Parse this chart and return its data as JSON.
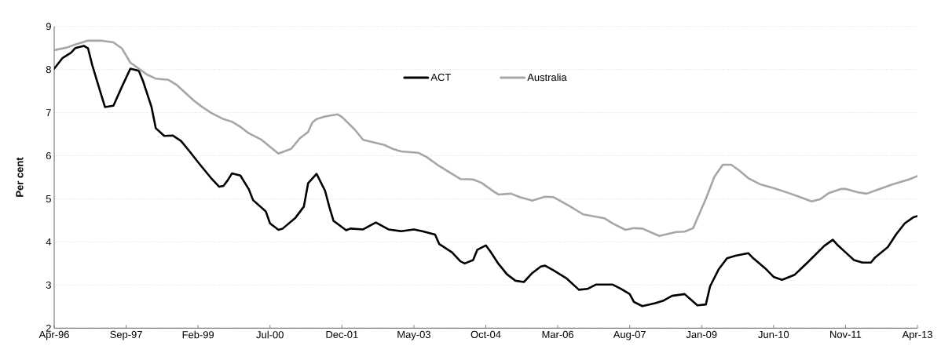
{
  "chart_data": {
    "type": "line",
    "ylabel": "Per cent",
    "xlim": [
      "1996-04",
      "2013-04"
    ],
    "ylim": [
      2,
      9
    ],
    "xticks": [
      {
        "value": "1996-04",
        "label": "Apr-96"
      },
      {
        "value": "1997-09",
        "label": "Sep-97"
      },
      {
        "value": "1999-02",
        "label": "Feb-99"
      },
      {
        "value": "2000-07",
        "label": "Jul-00"
      },
      {
        "value": "2001-12",
        "label": "Dec-01"
      },
      {
        "value": "2003-05",
        "label": "May-03"
      },
      {
        "value": "2004-10",
        "label": "Oct-04"
      },
      {
        "value": "2006-03",
        "label": "Mar-06"
      },
      {
        "value": "2007-08",
        "label": "Aug-07"
      },
      {
        "value": "2009-01",
        "label": "Jan-09"
      },
      {
        "value": "2010-06",
        "label": "Jun-10"
      },
      {
        "value": "2011-11",
        "label": "Nov-11"
      },
      {
        "value": "2013-04",
        "label": "Apr-13"
      }
    ],
    "yticks": [
      2,
      3,
      4,
      5,
      6,
      7,
      8,
      9
    ],
    "grid": "y",
    "legend": "top",
    "series": [
      {
        "name": "ACT",
        "color": "#000000",
        "x": [
          "1996-04",
          "1996-06",
          "1996-08",
          "1996-09",
          "1996-11",
          "1996-12",
          "1997-01",
          "1997-03",
          "1997-04",
          "1997-06",
          "1997-08",
          "1997-10",
          "1997-12",
          "1998-01",
          "1998-03",
          "1998-04",
          "1998-06",
          "1998-08",
          "1998-10",
          "1998-12",
          "1999-02",
          "1999-03",
          "1999-05",
          "1999-07",
          "1999-08",
          "1999-09",
          "1999-10",
          "1999-12",
          "2000-02",
          "2000-03",
          "2000-06",
          "2000-07",
          "2000-09",
          "2000-10",
          "2001-01",
          "2001-03",
          "2001-04",
          "2001-06",
          "2001-08",
          "2001-09",
          "2001-10",
          "2002-01",
          "2002-02",
          "2002-05",
          "2002-08",
          "2002-11",
          "2003-02",
          "2003-05",
          "2003-07",
          "2003-10",
          "2003-11",
          "2004-02",
          "2004-04",
          "2004-05",
          "2004-07",
          "2004-08",
          "2004-10",
          "2004-11",
          "2005-01",
          "2005-03",
          "2005-05",
          "2005-07",
          "2005-09",
          "2005-11",
          "2005-12",
          "2006-02",
          "2006-05",
          "2006-08",
          "2006-10",
          "2006-12",
          "2007-04",
          "2007-06",
          "2007-08",
          "2007-09",
          "2007-11",
          "2008-02",
          "2008-04",
          "2008-06",
          "2008-09",
          "2008-10",
          "2008-12",
          "2009-02",
          "2009-03",
          "2009-05",
          "2009-07",
          "2009-09",
          "2009-12",
          "2010-01",
          "2010-04",
          "2010-06",
          "2010-08",
          "2010-11",
          "2011-02",
          "2011-06",
          "2011-08",
          "2011-09",
          "2011-11",
          "2012-01",
          "2012-03",
          "2012-05",
          "2012-06",
          "2012-09",
          "2012-11",
          "2013-01",
          "2013-03",
          "2013-04"
        ],
        "values": [
          8.02,
          8.27,
          8.39,
          8.5,
          8.55,
          8.49,
          8.1,
          7.45,
          7.13,
          7.16,
          7.6,
          8.02,
          7.97,
          7.73,
          7.13,
          6.64,
          6.46,
          6.47,
          6.34,
          6.1,
          5.85,
          5.73,
          5.49,
          5.28,
          5.3,
          5.43,
          5.59,
          5.54,
          5.22,
          4.97,
          4.71,
          4.43,
          4.28,
          4.31,
          4.56,
          4.82,
          5.36,
          5.58,
          5.19,
          4.82,
          4.49,
          4.27,
          4.31,
          4.29,
          4.45,
          4.29,
          4.25,
          4.29,
          4.25,
          4.17,
          3.95,
          3.76,
          3.55,
          3.5,
          3.58,
          3.82,
          3.92,
          3.79,
          3.49,
          3.25,
          3.1,
          3.07,
          3.28,
          3.43,
          3.45,
          3.34,
          3.16,
          2.89,
          2.91,
          3.01,
          3.01,
          2.91,
          2.79,
          2.61,
          2.51,
          2.58,
          2.64,
          2.75,
          2.79,
          2.7,
          2.53,
          2.55,
          2.97,
          3.36,
          3.62,
          3.68,
          3.74,
          3.64,
          3.39,
          3.19,
          3.12,
          3.24,
          3.52,
          3.91,
          4.05,
          3.94,
          3.76,
          3.58,
          3.52,
          3.52,
          3.64,
          3.88,
          4.18,
          4.43,
          4.57,
          4.6
        ]
      },
      {
        "name": "Australia",
        "color": "#a6a6a6",
        "x": [
          "1996-04",
          "1996-07",
          "1996-09",
          "1996-12",
          "1997-03",
          "1997-06",
          "1997-08",
          "1997-10",
          "1998-02",
          "1998-04",
          "1998-07",
          "1998-09",
          "1999-01",
          "1999-03",
          "1999-05",
          "1999-08",
          "1999-10",
          "1999-12",
          "2000-02",
          "2000-05",
          "2000-08",
          "2000-09",
          "2000-12",
          "2001-02",
          "2001-04",
          "2001-05",
          "2001-06",
          "2001-08",
          "2001-11",
          "2001-12",
          "2002-03",
          "2002-05",
          "2002-10",
          "2002-12",
          "2003-02",
          "2003-06",
          "2003-08",
          "2003-11",
          "2004-02",
          "2004-04",
          "2004-07",
          "2004-09",
          "2004-12",
          "2005-01",
          "2005-04",
          "2005-06",
          "2005-09",
          "2005-12",
          "2006-02",
          "2006-06",
          "2006-09",
          "2007-02",
          "2007-04",
          "2007-07",
          "2007-09",
          "2007-11",
          "2008-02",
          "2008-03",
          "2008-07",
          "2008-09",
          "2008-11",
          "2008-12",
          "2009-02",
          "2009-04",
          "2009-06",
          "2009-08",
          "2009-10",
          "2009-12",
          "2010-03",
          "2010-06",
          "2010-10",
          "2010-12",
          "2011-03",
          "2011-05",
          "2011-07",
          "2011-10",
          "2011-11",
          "2012-02",
          "2012-04",
          "2012-06",
          "2012-10",
          "2012-12",
          "2013-02",
          "2013-04"
        ],
        "values": [
          8.45,
          8.51,
          8.58,
          8.67,
          8.67,
          8.63,
          8.49,
          8.16,
          7.88,
          7.79,
          7.76,
          7.64,
          7.28,
          7.13,
          7.0,
          6.85,
          6.79,
          6.67,
          6.52,
          6.37,
          6.13,
          6.05,
          6.16,
          6.4,
          6.55,
          6.77,
          6.85,
          6.91,
          6.96,
          6.9,
          6.61,
          6.37,
          6.25,
          6.16,
          6.1,
          6.07,
          5.97,
          5.76,
          5.58,
          5.46,
          5.45,
          5.37,
          5.16,
          5.1,
          5.12,
          5.04,
          4.96,
          5.05,
          5.04,
          4.82,
          4.64,
          4.55,
          4.43,
          4.28,
          4.32,
          4.31,
          4.18,
          4.14,
          4.23,
          4.24,
          4.32,
          4.55,
          5.0,
          5.51,
          5.79,
          5.79,
          5.65,
          5.48,
          5.33,
          5.25,
          5.12,
          5.05,
          4.94,
          4.99,
          5.13,
          5.23,
          5.23,
          5.15,
          5.12,
          5.19,
          5.33,
          5.39,
          5.45,
          5.53
        ]
      }
    ]
  }
}
